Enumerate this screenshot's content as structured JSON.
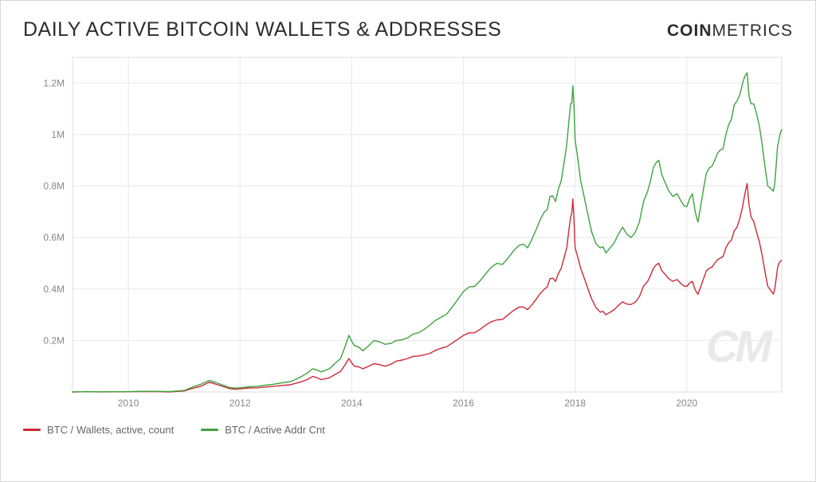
{
  "title": "DAILY ACTIVE BITCOIN WALLETS & ADDRESSES",
  "brand": {
    "left": "COIN",
    "right": "METRICS"
  },
  "watermark": "CM",
  "chart": {
    "type": "line",
    "background_color": "#ffffff",
    "grid_color": "#e8e8e8",
    "border_color": "#dcdcdc",
    "axis_label_color": "#888888",
    "axis_fontsize": 12,
    "line_width": 1.4,
    "xlim": [
      2009.0,
      2021.7
    ],
    "ylim": [
      0,
      1300000
    ],
    "y_ticks": [
      {
        "v": 200000,
        "label": "0.2M"
      },
      {
        "v": 400000,
        "label": "0.4M"
      },
      {
        "v": 600000,
        "label": "0.6M"
      },
      {
        "v": 800000,
        "label": "0.8M"
      },
      {
        "v": 1000000,
        "label": "1M"
      },
      {
        "v": 1200000,
        "label": "1.2M"
      }
    ],
    "x_ticks": [
      {
        "v": 2010,
        "label": "2010"
      },
      {
        "v": 2012,
        "label": "2012"
      },
      {
        "v": 2014,
        "label": "2014"
      },
      {
        "v": 2016,
        "label": "2016"
      },
      {
        "v": 2018,
        "label": "2018"
      },
      {
        "v": 2020,
        "label": "2020"
      }
    ],
    "series": [
      {
        "name": "BTC / Wallets, active, count",
        "color": "#cc2a36",
        "data": [
          [
            2009.0,
            0
          ],
          [
            2009.5,
            300
          ],
          [
            2010.0,
            800
          ],
          [
            2010.5,
            1500
          ],
          [
            2011.0,
            4000
          ],
          [
            2011.3,
            22000
          ],
          [
            2011.45,
            38000
          ],
          [
            2011.6,
            28000
          ],
          [
            2011.8,
            14000
          ],
          [
            2012.0,
            12000
          ],
          [
            2012.3,
            16000
          ],
          [
            2012.6,
            22000
          ],
          [
            2012.9,
            28000
          ],
          [
            2013.1,
            40000
          ],
          [
            2013.3,
            60000
          ],
          [
            2013.45,
            48000
          ],
          [
            2013.6,
            55000
          ],
          [
            2013.8,
            80000
          ],
          [
            2013.95,
            130000
          ],
          [
            2014.05,
            100000
          ],
          [
            2014.2,
            90000
          ],
          [
            2014.4,
            110000
          ],
          [
            2014.6,
            100000
          ],
          [
            2014.8,
            120000
          ],
          [
            2015.0,
            130000
          ],
          [
            2015.2,
            140000
          ],
          [
            2015.4,
            150000
          ],
          [
            2015.6,
            170000
          ],
          [
            2015.8,
            190000
          ],
          [
            2016.0,
            220000
          ],
          [
            2016.2,
            230000
          ],
          [
            2016.4,
            260000
          ],
          [
            2016.6,
            280000
          ],
          [
            2016.8,
            300000
          ],
          [
            2017.0,
            330000
          ],
          [
            2017.15,
            320000
          ],
          [
            2017.3,
            360000
          ],
          [
            2017.45,
            400000
          ],
          [
            2017.55,
            440000
          ],
          [
            2017.65,
            430000
          ],
          [
            2017.75,
            480000
          ],
          [
            2017.85,
            560000
          ],
          [
            2017.92,
            680000
          ],
          [
            2017.96,
            750000
          ],
          [
            2018.0,
            560000
          ],
          [
            2018.1,
            480000
          ],
          [
            2018.2,
            420000
          ],
          [
            2018.3,
            360000
          ],
          [
            2018.45,
            310000
          ],
          [
            2018.55,
            300000
          ],
          [
            2018.7,
            320000
          ],
          [
            2018.85,
            350000
          ],
          [
            2019.0,
            340000
          ],
          [
            2019.15,
            370000
          ],
          [
            2019.3,
            430000
          ],
          [
            2019.4,
            480000
          ],
          [
            2019.5,
            500000
          ],
          [
            2019.6,
            460000
          ],
          [
            2019.75,
            430000
          ],
          [
            2019.9,
            420000
          ],
          [
            2020.0,
            410000
          ],
          [
            2020.1,
            430000
          ],
          [
            2020.2,
            380000
          ],
          [
            2020.3,
            440000
          ],
          [
            2020.4,
            480000
          ],
          [
            2020.5,
            500000
          ],
          [
            2020.6,
            520000
          ],
          [
            2020.7,
            560000
          ],
          [
            2020.8,
            590000
          ],
          [
            2020.9,
            640000
          ],
          [
            2021.0,
            720000
          ],
          [
            2021.08,
            810000
          ],
          [
            2021.15,
            680000
          ],
          [
            2021.25,
            620000
          ],
          [
            2021.35,
            530000
          ],
          [
            2021.45,
            410000
          ],
          [
            2021.55,
            380000
          ],
          [
            2021.6,
            440000
          ],
          [
            2021.65,
            500000
          ],
          [
            2021.7,
            510000
          ]
        ]
      },
      {
        "name": "BTC / Active Addr Cnt",
        "color": "#3fa33f",
        "data": [
          [
            2009.0,
            0
          ],
          [
            2009.5,
            500
          ],
          [
            2010.0,
            1200
          ],
          [
            2010.5,
            2500
          ],
          [
            2011.0,
            6000
          ],
          [
            2011.3,
            30000
          ],
          [
            2011.45,
            45000
          ],
          [
            2011.6,
            34000
          ],
          [
            2011.8,
            18000
          ],
          [
            2012.0,
            16000
          ],
          [
            2012.3,
            22000
          ],
          [
            2012.6,
            30000
          ],
          [
            2012.9,
            40000
          ],
          [
            2013.1,
            60000
          ],
          [
            2013.3,
            90000
          ],
          [
            2013.45,
            78000
          ],
          [
            2013.6,
            90000
          ],
          [
            2013.8,
            130000
          ],
          [
            2013.95,
            220000
          ],
          [
            2014.05,
            180000
          ],
          [
            2014.2,
            160000
          ],
          [
            2014.4,
            200000
          ],
          [
            2014.6,
            185000
          ],
          [
            2014.8,
            200000
          ],
          [
            2015.0,
            210000
          ],
          [
            2015.2,
            230000
          ],
          [
            2015.4,
            260000
          ],
          [
            2015.6,
            290000
          ],
          [
            2015.8,
            330000
          ],
          [
            2016.0,
            390000
          ],
          [
            2016.2,
            410000
          ],
          [
            2016.4,
            460000
          ],
          [
            2016.6,
            500000
          ],
          [
            2016.8,
            520000
          ],
          [
            2017.0,
            570000
          ],
          [
            2017.15,
            560000
          ],
          [
            2017.3,
            630000
          ],
          [
            2017.45,
            700000
          ],
          [
            2017.55,
            760000
          ],
          [
            2017.65,
            740000
          ],
          [
            2017.75,
            820000
          ],
          [
            2017.85,
            960000
          ],
          [
            2017.92,
            1120000
          ],
          [
            2017.96,
            1190000
          ],
          [
            2018.0,
            980000
          ],
          [
            2018.1,
            820000
          ],
          [
            2018.2,
            720000
          ],
          [
            2018.3,
            620000
          ],
          [
            2018.45,
            560000
          ],
          [
            2018.55,
            540000
          ],
          [
            2018.7,
            580000
          ],
          [
            2018.85,
            640000
          ],
          [
            2019.0,
            600000
          ],
          [
            2019.15,
            660000
          ],
          [
            2019.3,
            780000
          ],
          [
            2019.4,
            870000
          ],
          [
            2019.5,
            900000
          ],
          [
            2019.6,
            820000
          ],
          [
            2019.75,
            760000
          ],
          [
            2019.9,
            740000
          ],
          [
            2020.0,
            720000
          ],
          [
            2020.1,
            770000
          ],
          [
            2020.2,
            660000
          ],
          [
            2020.3,
            790000
          ],
          [
            2020.4,
            870000
          ],
          [
            2020.5,
            900000
          ],
          [
            2020.6,
            940000
          ],
          [
            2020.7,
            1000000
          ],
          [
            2020.8,
            1060000
          ],
          [
            2020.9,
            1130000
          ],
          [
            2021.0,
            1200000
          ],
          [
            2021.08,
            1240000
          ],
          [
            2021.15,
            1120000
          ],
          [
            2021.25,
            1080000
          ],
          [
            2021.35,
            960000
          ],
          [
            2021.45,
            800000
          ],
          [
            2021.55,
            780000
          ],
          [
            2021.6,
            880000
          ],
          [
            2021.65,
            980000
          ],
          [
            2021.7,
            1020000
          ]
        ]
      }
    ]
  },
  "legend": [
    {
      "label": "BTC / Wallets, active, count",
      "color": "#cc2a36"
    },
    {
      "label": "BTC / Active Addr Cnt",
      "color": "#3fa33f"
    }
  ]
}
